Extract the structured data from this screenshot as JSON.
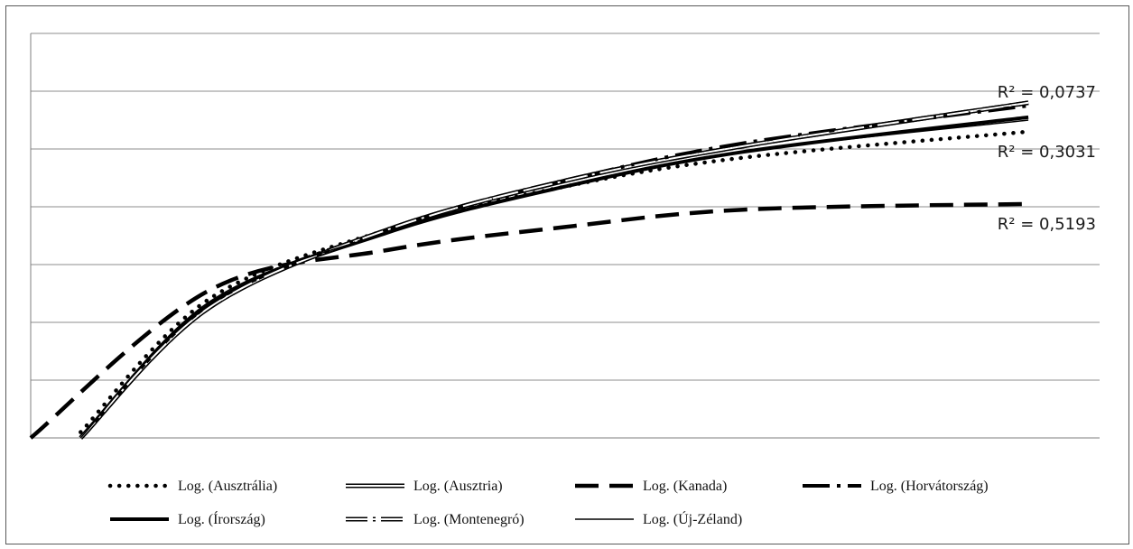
{
  "chart_data": {
    "type": "line",
    "title": "",
    "xlabel": "",
    "ylabel": "",
    "ylim": [
      0,
      7
    ],
    "grid": true,
    "legend_placement": "bottom",
    "series": [
      {
        "name": "Log. (Ausztrália)",
        "style": "dotted",
        "stroke": "#000000",
        "x": [
          14,
          50,
          100,
          150,
          200,
          280
        ],
        "y": [
          0.1,
          2.4,
          3.6,
          4.35,
          4.85,
          5.3
        ]
      },
      {
        "name": "Log. (Ausztria)",
        "style": "double",
        "stroke": "#000000",
        "x": [
          14,
          50,
          100,
          150,
          200,
          280
        ],
        "y": [
          0.0,
          2.25,
          3.6,
          4.45,
          5.05,
          5.8
        ]
      },
      {
        "name": "Log. (Kanada)",
        "style": "dashed-heavy",
        "stroke": "#000000",
        "x": [
          0,
          50,
          100,
          150,
          200,
          280
        ],
        "y": [
          0.0,
          2.55,
          3.25,
          3.65,
          3.95,
          4.05
        ]
      },
      {
        "name": "Log. (Horvátország)",
        "style": "long-dash-dot",
        "stroke": "#000000",
        "x": [
          14,
          50,
          100,
          150,
          200,
          280
        ],
        "y": [
          0.0,
          2.3,
          3.6,
          4.45,
          5.1,
          5.75
        ]
      },
      {
        "name": "Log. (Írország)",
        "style": "solid-heavy",
        "stroke": "#000000",
        "x": [
          14,
          50,
          100,
          150,
          200,
          280
        ],
        "y": [
          0.0,
          2.3,
          3.55,
          4.35,
          4.95,
          5.55
        ]
      },
      {
        "name": "Log. (Montenegró)",
        "style": "double-dot",
        "stroke": "#000000",
        "x": [
          14,
          50,
          100,
          150,
          200,
          280
        ],
        "y": [
          0.0,
          2.25,
          3.6,
          4.45,
          5.05,
          5.8
        ]
      },
      {
        "name": "Log. (Új-Zéland)",
        "style": "solid-thin",
        "stroke": "#000000",
        "x": [
          14,
          50,
          100,
          150,
          200,
          280
        ],
        "y": [
          0.0,
          2.35,
          3.55,
          4.35,
          4.95,
          5.5
        ]
      }
    ],
    "annotations": [
      {
        "text": "R² = 0,0737",
        "anchor_series": 0
      },
      {
        "text": "R² = 0,3031",
        "anchor_series": 4
      },
      {
        "text": "R² = 0,5193",
        "anchor_series": 2
      }
    ]
  }
}
